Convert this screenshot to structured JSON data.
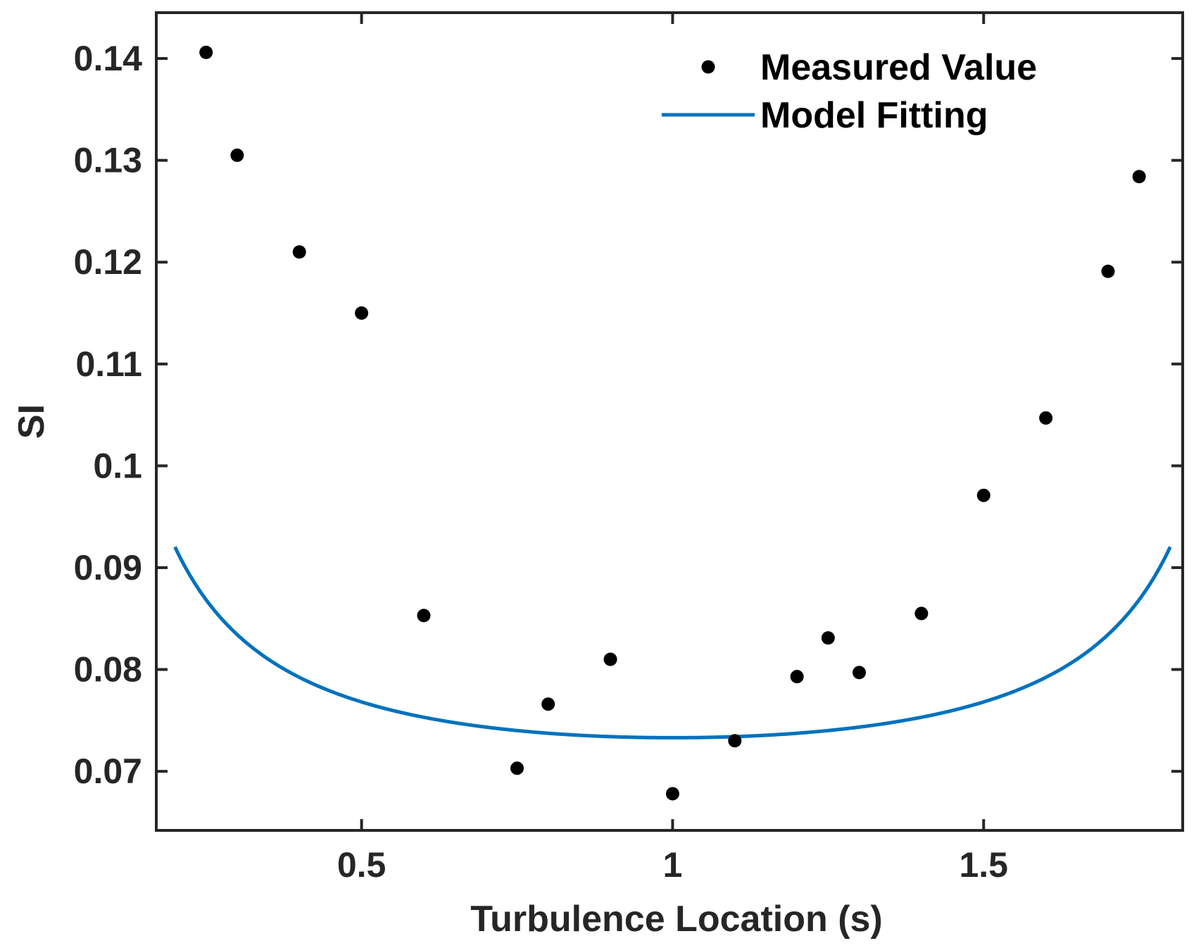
{
  "chart_data": {
    "type": "scatter",
    "title": "",
    "xlabel": "Turbulence Location (s)",
    "ylabel": "SI",
    "xlim": [
      0.17,
      1.82
    ],
    "ylim": [
      0.0642,
      0.1445
    ],
    "xticks": [
      0.5,
      1,
      1.5
    ],
    "xtick_labels": [
      "0.5",
      "1",
      "1.5"
    ],
    "yticks": [
      0.07,
      0.08,
      0.09,
      0.1,
      0.11,
      0.12,
      0.13,
      0.14
    ],
    "ytick_labels": [
      "0.07",
      "0.08",
      "0.09",
      "0.1",
      "0.11",
      "0.12",
      "0.13",
      "0.14"
    ],
    "grid": false,
    "legend_position": "top-right",
    "series": [
      {
        "name": "Measured Value",
        "kind": "markers",
        "color": "#000000",
        "x": [
          0.25,
          0.3,
          0.4,
          0.5,
          0.6,
          0.75,
          0.8,
          0.9,
          1.0,
          1.1,
          1.2,
          1.25,
          1.3,
          1.4,
          1.5,
          1.6,
          1.7,
          1.75
        ],
        "y": [
          0.1406,
          0.1305,
          0.121,
          0.115,
          0.0853,
          0.0703,
          0.0766,
          0.081,
          0.0678,
          0.073,
          0.0793,
          0.0831,
          0.0797,
          0.0855,
          0.0971,
          0.1047,
          0.1191,
          0.1284
        ]
      },
      {
        "name": "Model Fitting",
        "kind": "line",
        "color": "#0072BD",
        "model": "y = a / (x * (2 - x)) + b",
        "params": {
          "a": 0.01054,
          "b": 0.06276
        },
        "x_range": [
          0.2,
          1.8
        ]
      }
    ]
  }
}
